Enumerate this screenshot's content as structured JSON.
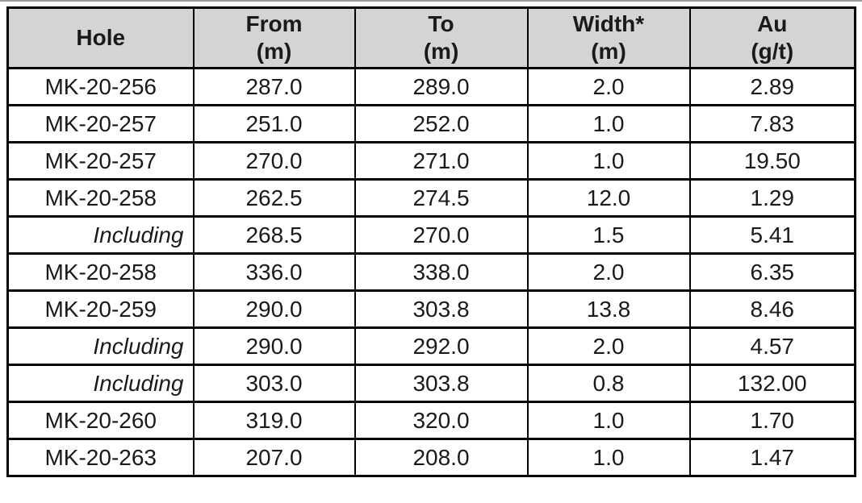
{
  "colors": {
    "header_bg": "#d4d4d4",
    "border": "#000000",
    "top_edge": "#9b9b9b"
  },
  "table": {
    "headers": [
      {
        "label": "Hole",
        "unit": ""
      },
      {
        "label": "From",
        "unit": "(m)"
      },
      {
        "label": "To",
        "unit": "(m)"
      },
      {
        "label": "Width*",
        "unit": "(m)"
      },
      {
        "label": "Au",
        "unit": "(g/t)"
      }
    ],
    "rows": [
      {
        "including": false,
        "cells": [
          "MK-20-256",
          "287.0",
          "289.0",
          "2.0",
          "2.89"
        ]
      },
      {
        "including": false,
        "cells": [
          "MK-20-257",
          "251.0",
          "252.0",
          "1.0",
          "7.83"
        ]
      },
      {
        "including": false,
        "cells": [
          "MK-20-257",
          "270.0",
          "271.0",
          "1.0",
          "19.50"
        ]
      },
      {
        "including": false,
        "cells": [
          "MK-20-258",
          "262.5",
          "274.5",
          "12.0",
          "1.29"
        ]
      },
      {
        "including": true,
        "cells": [
          "Including",
          "268.5",
          "270.0",
          "1.5",
          "5.41"
        ]
      },
      {
        "including": false,
        "cells": [
          "MK-20-258",
          "336.0",
          "338.0",
          "2.0",
          "6.35"
        ]
      },
      {
        "including": false,
        "cells": [
          "MK-20-259",
          "290.0",
          "303.8",
          "13.8",
          "8.46"
        ]
      },
      {
        "including": true,
        "cells": [
          "Including",
          "290.0",
          "292.0",
          "2.0",
          "4.57"
        ]
      },
      {
        "including": true,
        "cells": [
          "Including",
          "303.0",
          "303.8",
          "0.8",
          "132.00"
        ]
      },
      {
        "including": false,
        "cells": [
          "MK-20-260",
          "319.0",
          "320.0",
          "1.0",
          "1.70"
        ]
      },
      {
        "including": false,
        "cells": [
          "MK-20-263",
          "207.0",
          "208.0",
          "1.0",
          "1.47"
        ]
      }
    ]
  }
}
